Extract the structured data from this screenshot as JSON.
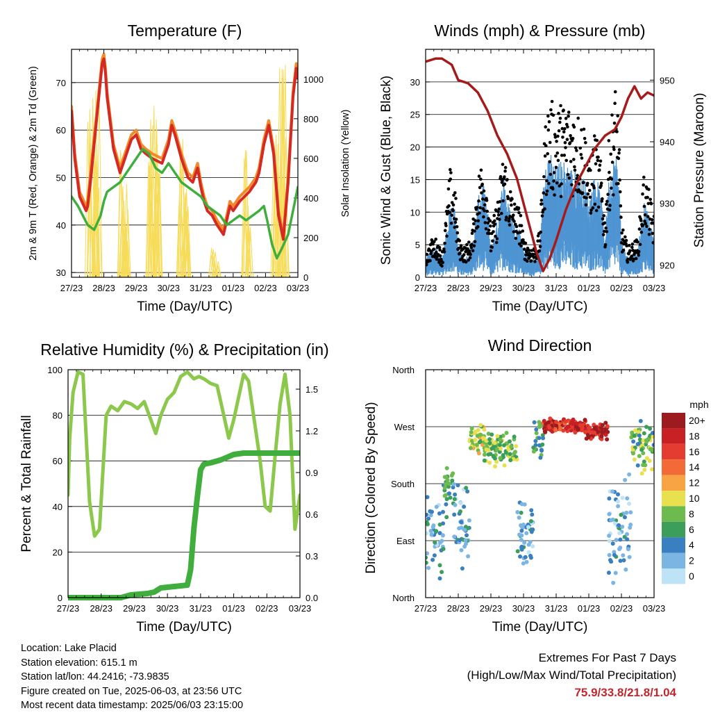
{
  "colors": {
    "red": "#d42a22",
    "orange": "#f28a2c",
    "green": "#3fae3c",
    "yellow": "#f7dc5a",
    "black": "#000000",
    "blue": "#4f95d3",
    "maroon": "#a51b1b",
    "rh": "#8cc84b",
    "rain": "#3fae3c"
  },
  "days": [
    "27/23",
    "28/23",
    "29/23",
    "30/23",
    "31/23",
    "01/23",
    "02/23",
    "03/23"
  ],
  "speed_scale": {
    "title": "mph",
    "labels": [
      "20+",
      "18",
      "16",
      "14",
      "12",
      "10",
      "8",
      "6",
      "4",
      "2",
      "0"
    ],
    "colors": [
      "#9b1b1f",
      "#c72025",
      "#e43d2f",
      "#f26a35",
      "#f8a444",
      "#e9e04f",
      "#6dba4e",
      "#3b9e5a",
      "#3a7fbf",
      "#7bb5e3",
      "#bfe3f6"
    ]
  },
  "chart_data": [
    {
      "name": "temperature",
      "type": "line",
      "title": "Temperature (F)",
      "xlabel": "Time (Day/UTC)",
      "ylabel_left": "2m & 9m T (Red, Orange) & 2m Td (Green)",
      "ylabel_right": "Solar Insolation (Yellow)",
      "ylim_left": [
        29,
        77
      ],
      "ylim_right": [
        0,
        1150
      ],
      "yticks_left": [
        30,
        40,
        50,
        60,
        70
      ],
      "yticks_right": [
        0,
        200,
        400,
        600,
        800,
        1000
      ],
      "x_range_days": [
        0,
        7
      ],
      "series": [
        {
          "key": "t9m",
          "color": "orange",
          "x": [
            0,
            0.1,
            0.25,
            0.45,
            0.5,
            0.6,
            0.8,
            0.95,
            1.0,
            1.05,
            1.1,
            1.3,
            1.5,
            1.7,
            1.85,
            2.0,
            2.15,
            2.3,
            2.5,
            2.8,
            3.0,
            3.1,
            3.2,
            3.4,
            3.6,
            3.75,
            3.9,
            4.0,
            4.1,
            4.2,
            4.35,
            4.5,
            4.7,
            4.9,
            5.0,
            5.2,
            5.5,
            5.7,
            5.8,
            5.95,
            6.1,
            6.25,
            6.4,
            6.55,
            6.7,
            6.85,
            6.95,
            7.0
          ],
          "y": [
            65,
            55,
            47,
            44,
            45,
            52,
            65,
            75,
            76,
            73,
            68,
            57,
            52,
            56,
            59,
            60,
            57,
            56,
            55,
            54,
            58,
            62,
            60,
            55,
            51,
            50,
            53,
            49,
            46,
            44,
            43,
            41,
            39,
            45,
            44,
            46,
            48,
            50,
            52,
            58,
            62,
            56,
            43,
            38,
            50,
            68,
            74,
            72
          ]
        },
        {
          "key": "t2m",
          "color": "red",
          "x": [
            0,
            0.1,
            0.25,
            0.45,
            0.5,
            0.6,
            0.8,
            0.95,
            1.0,
            1.05,
            1.1,
            1.3,
            1.5,
            1.7,
            1.85,
            2.0,
            2.15,
            2.3,
            2.5,
            2.8,
            3.0,
            3.1,
            3.2,
            3.4,
            3.6,
            3.75,
            3.9,
            4.0,
            4.1,
            4.2,
            4.35,
            4.5,
            4.7,
            4.9,
            5.0,
            5.2,
            5.5,
            5.7,
            5.8,
            5.95,
            6.1,
            6.25,
            6.4,
            6.55,
            6.7,
            6.85,
            6.95,
            7.0
          ],
          "y": [
            64,
            54,
            46,
            43,
            44,
            50,
            64,
            74,
            75,
            72,
            67,
            56,
            51,
            55,
            58,
            59,
            56,
            55,
            54,
            53,
            57,
            61,
            59,
            54,
            50,
            49,
            52,
            48,
            45,
            43,
            42,
            40,
            38,
            44,
            43,
            45,
            47,
            49,
            51,
            57,
            61,
            55,
            42,
            37,
            49,
            67,
            73,
            71
          ]
        },
        {
          "key": "td2m",
          "color": "green",
          "x": [
            0,
            0.2,
            0.35,
            0.5,
            0.7,
            0.9,
            1.0,
            1.1,
            1.3,
            1.5,
            1.8,
            2.0,
            2.2,
            2.4,
            2.6,
            2.8,
            3.0,
            3.2,
            3.4,
            3.6,
            3.8,
            4.0,
            4.2,
            4.4,
            4.6,
            4.8,
            5.0,
            5.2,
            5.4,
            5.6,
            5.8,
            5.95,
            6.05,
            6.2,
            6.35,
            6.5,
            6.7,
            6.85,
            7.0
          ],
          "y": [
            46,
            44,
            42,
            40,
            39,
            42,
            45,
            47,
            48,
            49,
            52,
            54,
            56,
            55,
            52,
            51,
            53,
            51,
            49,
            48,
            47,
            46,
            44,
            43,
            42,
            40,
            41,
            42,
            41,
            42,
            43,
            44,
            41,
            36,
            33,
            35,
            38,
            43,
            48
          ]
        }
      ],
      "solar_peaks": [
        {
          "x": 0.55,
          "y": 850
        },
        {
          "x": 0.7,
          "y": 1050
        },
        {
          "x": 0.8,
          "y": 980
        },
        {
          "x": 1.52,
          "y": 700
        },
        {
          "x": 1.63,
          "y": 400
        },
        {
          "x": 1.7,
          "y": 520
        },
        {
          "x": 2.45,
          "y": 820
        },
        {
          "x": 2.58,
          "y": 1000
        },
        {
          "x": 2.7,
          "y": 600
        },
        {
          "x": 3.4,
          "y": 700
        },
        {
          "x": 3.5,
          "y": 450
        },
        {
          "x": 3.58,
          "y": 560
        },
        {
          "x": 4.38,
          "y": 160
        },
        {
          "x": 4.5,
          "y": 100
        },
        {
          "x": 5.4,
          "y": 650
        },
        {
          "x": 5.5,
          "y": 320
        },
        {
          "x": 6.3,
          "y": 950
        },
        {
          "x": 6.45,
          "y": 1100
        },
        {
          "x": 6.58,
          "y": 1080
        }
      ]
    },
    {
      "name": "winds",
      "type": "scatter",
      "title": "Winds (mph) & Pressure (mb)",
      "xlabel": "Time (Day/UTC)",
      "ylabel_left": "Sonic Wind & Gust (Blue, Black)",
      "ylabel_right": "Station Pressure (Maroon)",
      "ylim_left": [
        0,
        35
      ],
      "ylim_right": [
        918,
        955
      ],
      "yticks_left": [
        0,
        5,
        10,
        15,
        20,
        25,
        30
      ],
      "yticks_right": [
        920,
        930,
        940,
        950
      ],
      "x_range_days": [
        0,
        7
      ],
      "wind_mean": {
        "x": [
          0,
          0.2,
          0.35,
          0.5,
          0.6,
          0.75,
          0.9,
          1.0,
          1.2,
          1.4,
          1.6,
          1.75,
          1.9,
          2.0,
          2.2,
          2.4,
          2.5,
          2.7,
          2.9,
          3.0,
          3.2,
          3.35,
          3.5,
          3.6,
          3.7,
          3.8,
          4.0,
          4.3,
          4.6,
          4.9,
          5.0,
          5.2,
          5.4,
          5.5,
          5.6,
          5.8,
          5.9,
          6.0,
          6.2,
          6.5,
          6.7,
          6.85,
          7.0
        ],
        "y": [
          2,
          3,
          3,
          2,
          4,
          8,
          7,
          3,
          2,
          3,
          8,
          10,
          7,
          3,
          6,
          11,
          8,
          6,
          5,
          3,
          2,
          2,
          3,
          9,
          12,
          13,
          12,
          12,
          11,
          10,
          8,
          11,
          8,
          4,
          10,
          13,
          12,
          4,
          2,
          3,
          8,
          6,
          4
        ]
      },
      "wind_gust": {
        "x": [
          0,
          0.2,
          0.35,
          0.5,
          0.6,
          0.75,
          0.9,
          1.0,
          1.2,
          1.4,
          1.6,
          1.75,
          1.9,
          2.0,
          2.2,
          2.4,
          2.5,
          2.7,
          2.9,
          3.0,
          3.2,
          3.35,
          3.5,
          3.6,
          3.7,
          3.8,
          4.0,
          4.3,
          4.6,
          4.9,
          5.0,
          5.2,
          5.4,
          5.5,
          5.6,
          5.8,
          5.9,
          6.0,
          6.2,
          6.5,
          6.7,
          6.85,
          7.0
        ],
        "y": [
          3,
          5,
          5,
          3,
          7,
          14,
          12,
          5,
          4,
          5,
          13,
          16,
          12,
          6,
          10,
          17,
          14,
          10,
          9,
          5,
          4,
          4,
          6,
          15,
          22,
          23,
          22,
          23,
          22,
          20,
          15,
          19,
          14,
          7,
          17,
          25,
          22,
          7,
          4,
          5,
          14,
          11,
          8
        ]
      },
      "pressure": {
        "x": [
          0,
          0.3,
          0.5,
          0.8,
          1.0,
          1.3,
          1.6,
          1.9,
          2.2,
          2.5,
          2.8,
          3.0,
          3.2,
          3.4,
          3.6,
          3.8,
          4.0,
          4.3,
          4.6,
          4.9,
          5.2,
          5.5,
          5.8,
          6.0,
          6.2,
          6.4,
          6.6,
          6.8,
          7.0
        ],
        "y": [
          953,
          953.5,
          953.5,
          952.5,
          950,
          949.5,
          948,
          945,
          941,
          938,
          934,
          930,
          926,
          922,
          919,
          921,
          924,
          929,
          933,
          936,
          939,
          941,
          942,
          944,
          947,
          949,
          947,
          948,
          947.5
        ]
      }
    },
    {
      "name": "humidity",
      "type": "line",
      "title": "Relative Humidity (%) & Precipitation (in)",
      "xlabel": "Time (Day/UTC)",
      "ylabel_left": "Percent & Total Rainfall",
      "ylim_left": [
        0,
        100
      ],
      "ylim_right": [
        0,
        1.64
      ],
      "yticks_left": [
        0,
        20,
        40,
        60,
        80,
        100
      ],
      "yticks_right": [
        0.0,
        0.3,
        0.6,
        0.9,
        1.2,
        1.5
      ],
      "yticks_right_labels": [
        "0.0",
        "0.3",
        "0.6",
        "0.9",
        "1.2",
        "1.5"
      ],
      "x_range_days": [
        0,
        7
      ],
      "series": [
        {
          "key": "rh",
          "color": "rh",
          "x": [
            0,
            0.05,
            0.15,
            0.3,
            0.45,
            0.55,
            0.65,
            0.8,
            0.95,
            1.05,
            1.15,
            1.3,
            1.5,
            1.7,
            1.9,
            2.1,
            2.3,
            2.5,
            2.65,
            2.8,
            3.0,
            3.2,
            3.4,
            3.6,
            3.8,
            3.95,
            4.1,
            4.3,
            4.5,
            4.7,
            4.85,
            5.0,
            5.15,
            5.3,
            5.45,
            5.6,
            5.8,
            5.95,
            6.1,
            6.25,
            6.4,
            6.55,
            6.7,
            6.85,
            7.0
          ],
          "y": [
            45,
            70,
            90,
            99,
            98,
            70,
            42,
            27,
            30,
            55,
            80,
            84,
            82,
            86,
            85,
            83,
            86,
            78,
            72,
            80,
            87,
            90,
            97,
            99,
            96,
            97,
            96,
            94,
            93,
            80,
            70,
            78,
            88,
            98,
            95,
            80,
            60,
            40,
            38,
            62,
            85,
            98,
            80,
            30,
            45
          ]
        },
        {
          "key": "rain",
          "color": "rain",
          "x": [
            0,
            1.2,
            1.6,
            1.9,
            2.4,
            2.6,
            2.8,
            3.2,
            3.6,
            3.7,
            3.8,
            3.9,
            4.0,
            4.1,
            4.3,
            4.6,
            4.8,
            5.0,
            5.3,
            6.0,
            7.0
          ],
          "y": [
            0.0,
            0.0,
            0.0,
            0.02,
            0.03,
            0.04,
            0.07,
            0.08,
            0.09,
            0.2,
            0.5,
            0.72,
            0.92,
            0.96,
            0.97,
            0.99,
            1.01,
            1.03,
            1.04,
            1.04,
            1.04
          ]
        }
      ]
    },
    {
      "name": "direction",
      "type": "scatter",
      "title": "Wind Direction",
      "xlabel": "Time (Day/UTC)",
      "ylabel_left": "Direction (Colored By Speed)",
      "y_categories": [
        "North",
        "East",
        "South",
        "West",
        "North"
      ],
      "ylim_deg": [
        0,
        360
      ],
      "x_range_days": [
        0,
        7
      ],
      "direction_segments": [
        {
          "x0": 0.0,
          "x1": 0.55,
          "center": 95,
          "spread": 70,
          "speed": 3
        },
        {
          "x0": 0.55,
          "x1": 0.85,
          "center": 170,
          "spread": 55,
          "speed": 6
        },
        {
          "x0": 0.85,
          "x1": 1.35,
          "center": 110,
          "spread": 80,
          "speed": 3
        },
        {
          "x0": 1.35,
          "x1": 1.8,
          "center": 250,
          "spread": 25,
          "speed": 9
        },
        {
          "x0": 1.8,
          "x1": 2.8,
          "center": 235,
          "spread": 30,
          "speed": 8
        },
        {
          "x0": 2.8,
          "x1": 3.3,
          "center": 100,
          "spread": 60,
          "speed": 3
        },
        {
          "x0": 3.3,
          "x1": 3.6,
          "center": 250,
          "spread": 40,
          "speed": 6
        },
        {
          "x0": 3.6,
          "x1": 4.9,
          "center": 272,
          "spread": 12,
          "speed": 17
        },
        {
          "x0": 4.9,
          "x1": 5.6,
          "center": 262,
          "spread": 15,
          "speed": 18
        },
        {
          "x0": 5.6,
          "x1": 6.3,
          "center": 110,
          "spread": 90,
          "speed": 3
        },
        {
          "x0": 6.3,
          "x1": 7.0,
          "center": 240,
          "spread": 45,
          "speed": 7
        }
      ]
    }
  ],
  "footer": {
    "location": "Location: Lake Placid",
    "elevation": "Station elevation: 615.1 m",
    "latlon": "Station lat/lon: 44.2416; -73.9835",
    "created": "Figure created on Tue, 2025-06-03, at 23:56 UTC",
    "latest": "Most recent data timestamp: 2025/06/03 23:15:00",
    "extremes_title": "Extremes For Past 7 Days",
    "extremes_subtitle": "(High/Low/Max Wind/Total Precipitation)",
    "extremes_values": "75.9/33.8/21.8/1.04"
  }
}
